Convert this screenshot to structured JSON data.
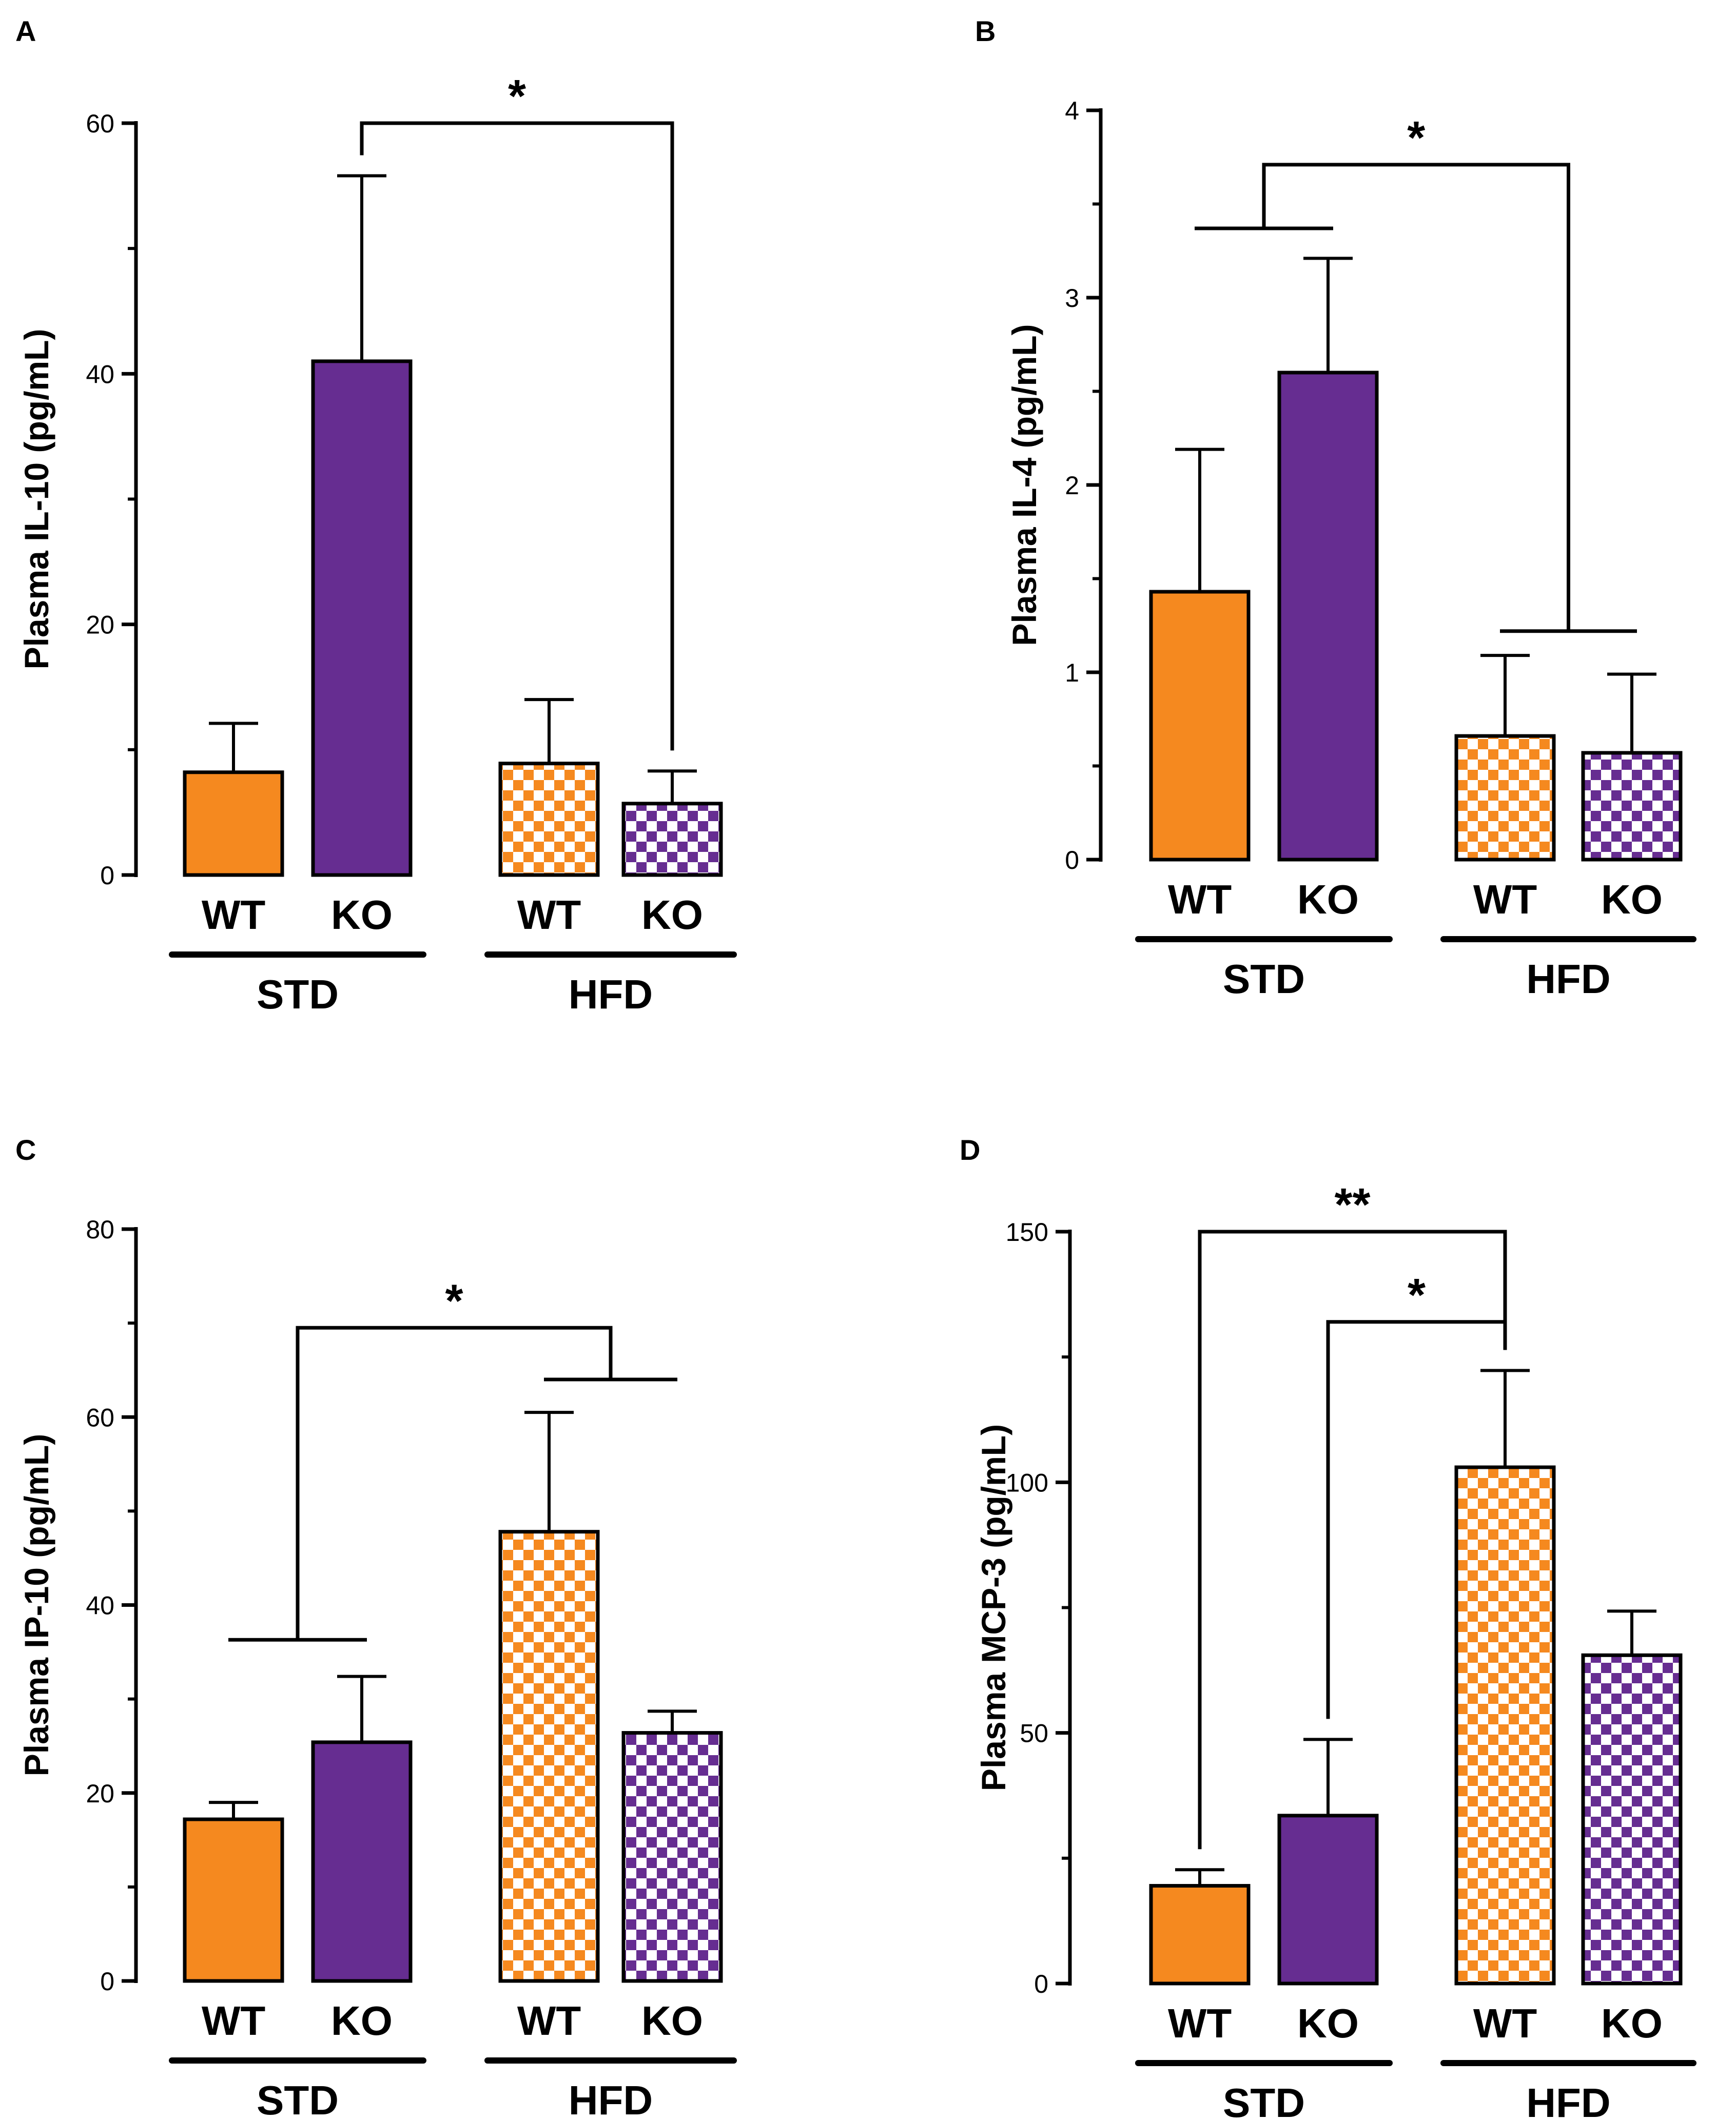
{
  "colors": {
    "wt": "#F5891F",
    "ko": "#662D91",
    "checker_bg": "#ffffff",
    "ink": "#000000"
  },
  "patterns": {
    "solid": "solid",
    "checker": "checkerboard"
  },
  "chart_data": [
    {
      "panel": "A",
      "type": "bar",
      "ylabel": "Plasma IL-10 (pg/mL)",
      "ylim": [
        0,
        60
      ],
      "yticks": [
        0,
        20,
        40,
        60
      ],
      "categories": [
        "WT",
        "KO",
        "WT",
        "KO"
      ],
      "groups": [
        {
          "label": "STD",
          "members": [
            0,
            1
          ]
        },
        {
          "label": "HFD",
          "members": [
            2,
            3
          ]
        }
      ],
      "values": [
        8.2,
        41.0,
        8.9,
        5.7
      ],
      "errors": [
        3.9,
        14.8,
        5.1,
        2.6
      ],
      "fill": [
        "solid",
        "solid",
        "checker",
        "checker"
      ],
      "genotype": [
        "wt",
        "ko",
        "wt",
        "ko"
      ],
      "significance": [
        {
          "label": "*",
          "from": [
            1
          ],
          "to": [
            3
          ],
          "y": 60
        }
      ]
    },
    {
      "panel": "B",
      "type": "bar",
      "ylabel": "Plasma IL-4 (pg/mL)",
      "ylim": [
        0,
        4
      ],
      "yticks": [
        0,
        1,
        2,
        3,
        4
      ],
      "categories": [
        "WT",
        "KO",
        "WT",
        "KO"
      ],
      "groups": [
        {
          "label": "STD",
          "members": [
            0,
            1
          ]
        },
        {
          "label": "HFD",
          "members": [
            2,
            3
          ]
        }
      ],
      "values": [
        1.43,
        2.6,
        0.66,
        0.57
      ],
      "errors": [
        0.76,
        0.61,
        0.43,
        0.42
      ],
      "fill": [
        "solid",
        "solid",
        "checker",
        "checker"
      ],
      "genotype": [
        "wt",
        "ko",
        "wt",
        "ko"
      ],
      "significance": [
        {
          "label": "*",
          "from": [
            0,
            1
          ],
          "to": [
            2,
            3
          ],
          "y": 3.71,
          "from_y": 3.37,
          "to_y": 1.22
        }
      ]
    },
    {
      "panel": "C",
      "type": "bar",
      "ylabel": "Plasma IP-10 (pg/mL)",
      "ylim": [
        0,
        80
      ],
      "yticks": [
        0,
        20,
        40,
        60,
        80
      ],
      "categories": [
        "WT",
        "KO",
        "WT",
        "KO"
      ],
      "groups": [
        {
          "label": "STD",
          "members": [
            0,
            1
          ]
        },
        {
          "label": "HFD",
          "members": [
            2,
            3
          ]
        }
      ],
      "values": [
        17.2,
        25.4,
        47.8,
        26.4
      ],
      "errors": [
        1.8,
        7.0,
        12.7,
        2.3
      ],
      "fill": [
        "solid",
        "solid",
        "checker",
        "checker"
      ],
      "genotype": [
        "wt",
        "ko",
        "wt",
        "ko"
      ],
      "significance": [
        {
          "label": "*",
          "from": [
            0,
            1
          ],
          "to": [
            2,
            3
          ],
          "y": 69.5,
          "from_y": 36.3,
          "to_y": 64.0
        }
      ]
    },
    {
      "panel": "D",
      "type": "bar",
      "ylabel": "Plasma MCP-3 (pg/mL)",
      "ylim": [
        0,
        150
      ],
      "yticks": [
        0,
        50,
        100,
        150
      ],
      "categories": [
        "WT",
        "KO",
        "WT",
        "KO"
      ],
      "groups": [
        {
          "label": "STD",
          "members": [
            0,
            1
          ]
        },
        {
          "label": "HFD",
          "members": [
            2,
            3
          ]
        }
      ],
      "values": [
        19.5,
        33.5,
        103.0,
        65.5
      ],
      "errors": [
        3.2,
        15.2,
        19.3,
        8.8
      ],
      "fill": [
        "solid",
        "solid",
        "checker",
        "checker"
      ],
      "genotype": [
        "wt",
        "ko",
        "wt",
        "ko"
      ],
      "significance": [
        {
          "label": "**",
          "from": [
            0
          ],
          "to": [
            2
          ],
          "y": 150
        },
        {
          "label": "*",
          "from": [
            1
          ],
          "to": [
            2
          ],
          "y": 132
        }
      ]
    }
  ]
}
